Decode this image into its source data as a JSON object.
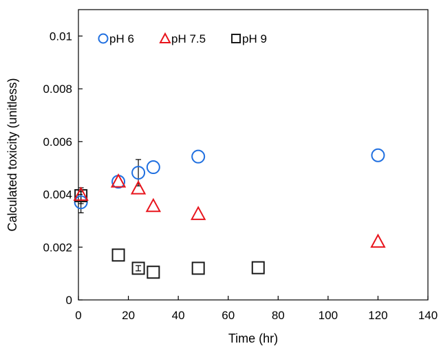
{
  "chart_data": {
    "type": "scatter",
    "xlabel": "Time (hr)",
    "ylabel": "Calculated toxicity (unitless)",
    "xlim": [
      0,
      140
    ],
    "ylim": [
      0,
      0.011
    ],
    "x_ticks": [
      "0",
      "20",
      "40",
      "60",
      "80",
      "100",
      "120",
      "140"
    ],
    "y_ticks": [
      "0",
      "0.002",
      "0.004",
      "0.006",
      "0.008",
      "0.01"
    ],
    "x_tick_values": [
      0,
      20,
      40,
      60,
      80,
      100,
      120,
      140
    ],
    "y_tick_values": [
      0,
      0.002,
      0.004,
      0.006,
      0.008,
      0.01
    ],
    "grid": false,
    "legend": "top-left",
    "series": [
      {
        "name": "pH 6",
        "marker": "circle",
        "color": "#1f6fe0",
        "points": [
          {
            "x": 1,
            "y": 0.0037,
            "err": 0.0004
          },
          {
            "x": 16,
            "y": 0.00448
          },
          {
            "x": 24,
            "y": 0.00482,
            "err": 0.0005
          },
          {
            "x": 30,
            "y": 0.00503
          },
          {
            "x": 48,
            "y": 0.00543
          },
          {
            "x": 120,
            "y": 0.00548
          }
        ]
      },
      {
        "name": "pH 7.5",
        "marker": "triangle",
        "color": "#e8141c",
        "points": [
          {
            "x": 1,
            "y": 0.00398
          },
          {
            "x": 16,
            "y": 0.00448
          },
          {
            "x": 24,
            "y": 0.00422
          },
          {
            "x": 30,
            "y": 0.00355
          },
          {
            "x": 48,
            "y": 0.00325
          },
          {
            "x": 120,
            "y": 0.0022
          }
        ]
      },
      {
        "name": "pH 9",
        "marker": "square",
        "color": "#1a1a1a",
        "points": [
          {
            "x": 1,
            "y": 0.00395,
            "err": 0.0003
          },
          {
            "x": 16,
            "y": 0.0017
          },
          {
            "x": 24,
            "y": 0.0012,
            "err": 0.0001
          },
          {
            "x": 30,
            "y": 0.00105
          },
          {
            "x": 48,
            "y": 0.0012
          },
          {
            "x": 72,
            "y": 0.00122
          }
        ]
      }
    ]
  }
}
